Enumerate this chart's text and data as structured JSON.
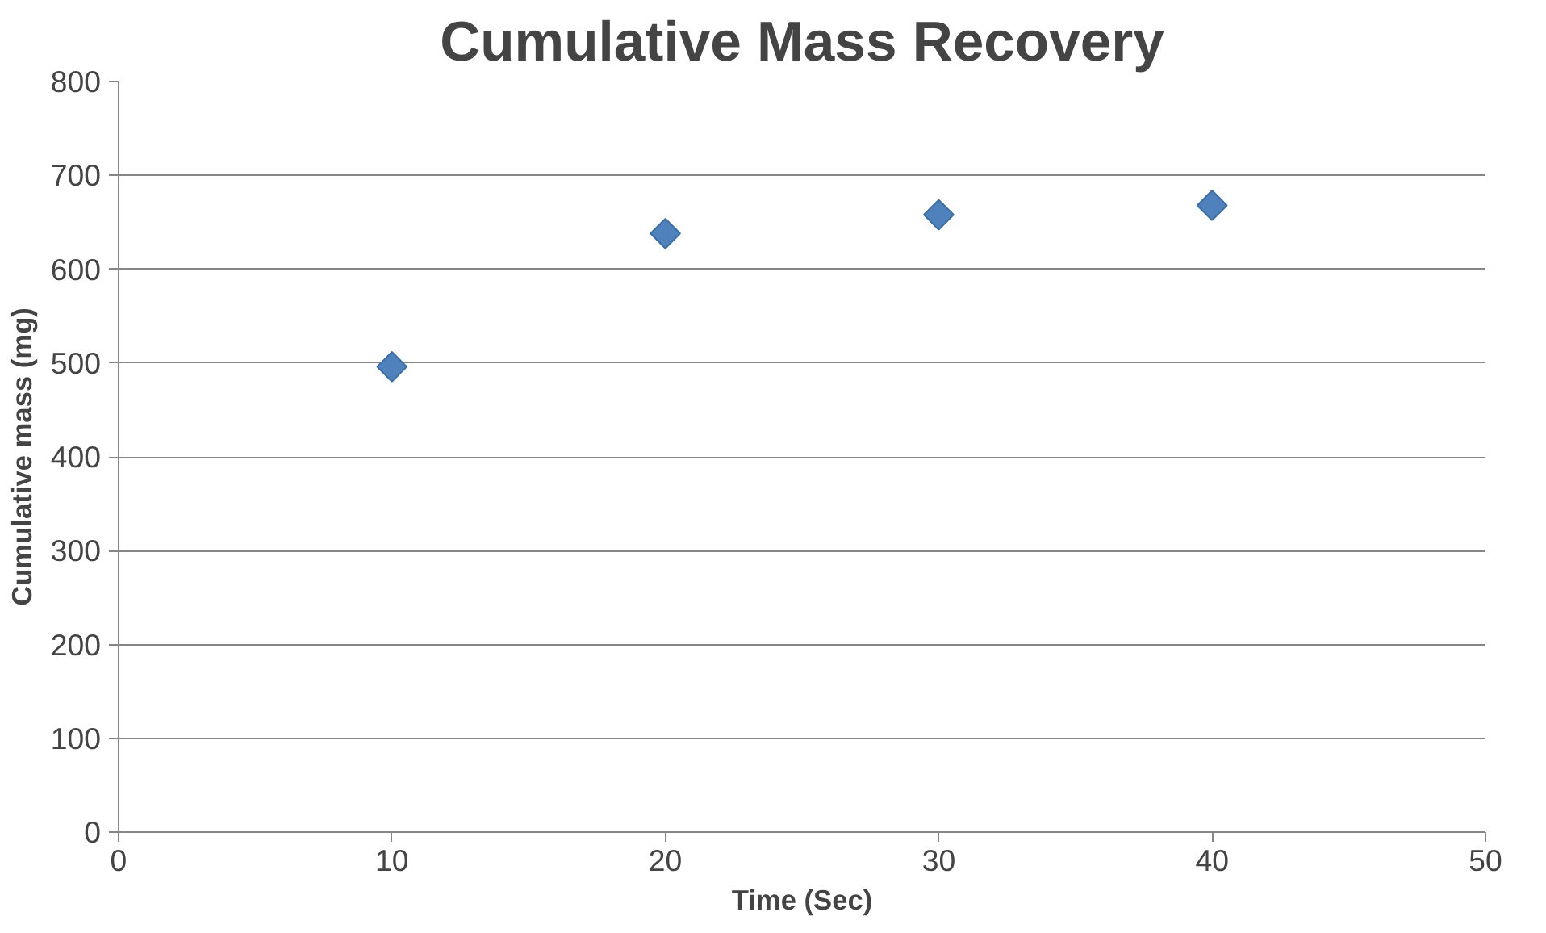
{
  "chart_data": {
    "type": "scatter",
    "title": "Cumulative Mass Recovery",
    "xlabel": "Time (Sec)",
    "ylabel": "Cumulative mass (mg)",
    "x": [
      10,
      20,
      30,
      40
    ],
    "series": [
      {
        "color": "#4f81bd",
        "values": [
          496,
          638,
          658,
          668
        ]
      }
    ],
    "xlim": [
      0,
      50
    ],
    "xticks": [
      0,
      10,
      20,
      30,
      40,
      50
    ],
    "ylim": [
      0,
      800
    ],
    "yticks": [
      0,
      100,
      200,
      300,
      400,
      500,
      600,
      700,
      800
    ],
    "grid": "y",
    "marker": "diamond"
  }
}
